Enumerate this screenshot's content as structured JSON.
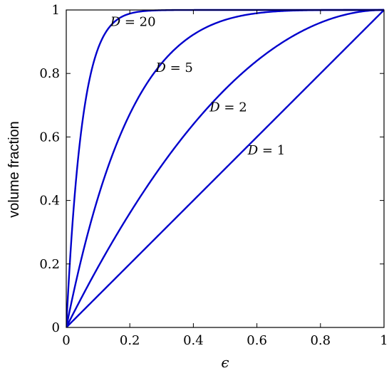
{
  "chart_data": {
    "type": "line",
    "xlabel": "ϵ",
    "ylabel": "volume fraction",
    "xlim": [
      0,
      1
    ],
    "ylim": [
      0,
      1
    ],
    "grid": false,
    "legend": "none",
    "line_color": "#0000cc",
    "xticks": [
      "0",
      "0.2",
      "0.4",
      "0.6",
      "0.8",
      "1"
    ],
    "yticks": [
      "0",
      "0.2",
      "0.4",
      "0.6",
      "0.8",
      "1"
    ],
    "series": [
      {
        "name": "D = 20",
        "D": 20,
        "x": [
          0,
          0.01,
          0.02,
          0.04,
          0.06,
          0.08,
          0.1,
          0.15,
          0.2,
          0.3,
          0.4,
          0.6,
          0.8,
          1
        ],
        "y": [
          0,
          0.18,
          0.33,
          0.56,
          0.71,
          0.81,
          0.88,
          0.96,
          0.99,
          1,
          1,
          1,
          1,
          1
        ]
      },
      {
        "name": "D = 5",
        "D": 5,
        "x": [
          0,
          0.05,
          0.1,
          0.2,
          0.3,
          0.4,
          0.5,
          0.6,
          0.7,
          0.8,
          0.9,
          1
        ],
        "y": [
          0,
          0.23,
          0.41,
          0.67,
          0.83,
          0.92,
          0.97,
          0.99,
          1,
          1,
          1,
          1
        ]
      },
      {
        "name": "D = 2",
        "D": 2,
        "x": [
          0,
          0.1,
          0.2,
          0.3,
          0.4,
          0.5,
          0.6,
          0.7,
          0.8,
          0.9,
          1
        ],
        "y": [
          0,
          0.19,
          0.36,
          0.51,
          0.64,
          0.75,
          0.84,
          0.91,
          0.96,
          0.99,
          1
        ]
      },
      {
        "name": "D = 1",
        "D": 1,
        "x": [
          0,
          0.2,
          0.4,
          0.6,
          0.8,
          1
        ],
        "y": [
          0,
          0.2,
          0.4,
          0.6,
          0.8,
          1
        ]
      }
    ],
    "annotations": [
      {
        "text": "D = 20",
        "x": 0.21,
        "y": 0.95
      },
      {
        "text": "D = 5",
        "x": 0.34,
        "y": 0.805
      },
      {
        "text": "D = 2",
        "x": 0.51,
        "y": 0.68
      },
      {
        "text": "D = 1",
        "x": 0.63,
        "y": 0.545
      }
    ]
  }
}
